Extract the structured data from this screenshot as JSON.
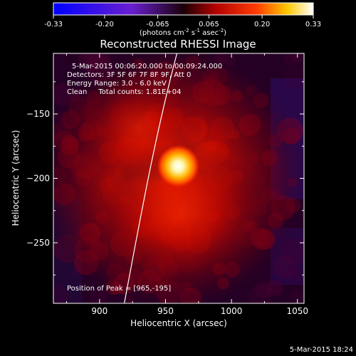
{
  "colorbar": {
    "tick_labels": [
      "-0.33",
      "-0.20",
      "-0.065",
      "0.065",
      "0.20",
      "0.33"
    ],
    "tick_values": [
      -0.33,
      -0.2,
      -0.065,
      0.065,
      0.2,
      0.33
    ],
    "range": [
      -0.33,
      0.33
    ],
    "units_prefix": "(photons cm",
    "units_exp1": "-2",
    "units_mid": " s",
    "units_exp2": "-1",
    "units_mid2": " asec",
    "units_exp3": "-2",
    "units_suffix": ")"
  },
  "chart_data": {
    "type": "heatmap",
    "title": "Reconstructed RHESSI Image",
    "xlabel": "Heliocentric X (arcsec)",
    "ylabel": "Heliocentric Y (arcsec)",
    "xlim": [
      865,
      1055
    ],
    "ylim": [
      -297,
      -103
    ],
    "x_ticks": [
      900,
      950,
      1000,
      1050
    ],
    "y_ticks": [
      -150,
      -200,
      -250
    ],
    "peak": [
      965,
      -195
    ],
    "annotations": [
      "5-Mar-2015 00:06:20.000 to 00:09:24.000",
      "Detectors: 3F 5F 6F 7F 8F 9F, Att 0",
      "Energy Range: 3.0 - 6.0 keV",
      "Clean     Total counts: 1.81E+04"
    ],
    "peak_label": "Position of Peak = [965,-195]"
  },
  "footer": {
    "timestamp": "5-Mar-2015 18:24"
  }
}
